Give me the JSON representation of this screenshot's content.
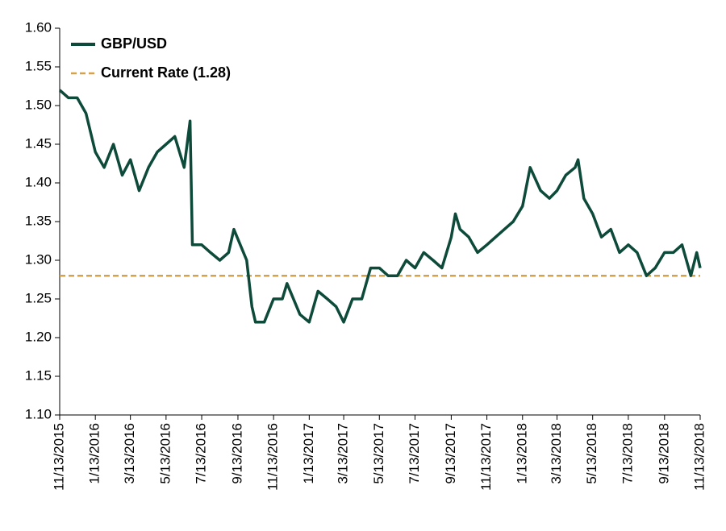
{
  "chart_data": {
    "type": "line",
    "x": [
      "2015-11-13",
      "2015-11-28",
      "2015-12-13",
      "2015-12-28",
      "2016-01-13",
      "2016-01-28",
      "2016-02-13",
      "2016-02-28",
      "2016-03-13",
      "2016-03-28",
      "2016-04-13",
      "2016-04-28",
      "2016-05-13",
      "2016-05-28",
      "2016-06-13",
      "2016-06-23",
      "2016-06-27",
      "2016-07-13",
      "2016-07-28",
      "2016-08-13",
      "2016-08-28",
      "2016-09-06",
      "2016-09-28",
      "2016-10-07",
      "2016-10-13",
      "2016-10-28",
      "2016-11-13",
      "2016-11-28",
      "2016-12-06",
      "2016-12-28",
      "2017-01-13",
      "2017-01-28",
      "2017-02-13",
      "2017-02-28",
      "2017-03-13",
      "2017-03-28",
      "2017-04-13",
      "2017-04-28",
      "2017-05-13",
      "2017-05-28",
      "2017-06-13",
      "2017-06-28",
      "2017-07-13",
      "2017-07-28",
      "2017-08-13",
      "2017-08-28",
      "2017-09-13",
      "2017-09-20",
      "2017-09-28",
      "2017-10-13",
      "2017-10-28",
      "2017-11-13",
      "2017-11-28",
      "2017-12-13",
      "2017-12-28",
      "2018-01-13",
      "2018-01-26",
      "2018-02-13",
      "2018-02-28",
      "2018-03-13",
      "2018-03-28",
      "2018-04-13",
      "2018-04-18",
      "2018-04-28",
      "2018-05-13",
      "2018-05-28",
      "2018-06-13",
      "2018-06-28",
      "2018-07-13",
      "2018-07-28",
      "2018-08-13",
      "2018-08-28",
      "2018-09-13",
      "2018-09-28",
      "2018-10-13",
      "2018-10-28",
      "2018-11-07",
      "2018-11-13"
    ],
    "series": [
      {
        "name": "GBP/USD",
        "color": "#0d4a3a",
        "values": [
          1.52,
          1.51,
          1.51,
          1.49,
          1.44,
          1.42,
          1.45,
          1.41,
          1.43,
          1.39,
          1.42,
          1.44,
          1.45,
          1.46,
          1.42,
          1.48,
          1.32,
          1.32,
          1.31,
          1.3,
          1.31,
          1.34,
          1.3,
          1.24,
          1.22,
          1.22,
          1.25,
          1.25,
          1.27,
          1.23,
          1.22,
          1.26,
          1.25,
          1.24,
          1.22,
          1.25,
          1.25,
          1.29,
          1.29,
          1.28,
          1.28,
          1.3,
          1.29,
          1.31,
          1.3,
          1.29,
          1.33,
          1.36,
          1.34,
          1.33,
          1.31,
          1.32,
          1.33,
          1.34,
          1.35,
          1.37,
          1.42,
          1.39,
          1.38,
          1.39,
          1.41,
          1.42,
          1.43,
          1.38,
          1.36,
          1.33,
          1.34,
          1.31,
          1.32,
          1.31,
          1.28,
          1.29,
          1.31,
          1.31,
          1.32,
          1.28,
          1.31,
          1.29
        ]
      }
    ],
    "reference_line": {
      "name": "Current Rate (1.28)",
      "value": 1.28,
      "color": "#d4a24a"
    },
    "xlim": [
      "2015-11-13",
      "2018-11-13"
    ],
    "xticks": [
      {
        "value": "2015-11-13",
        "label": "11/13/2015"
      },
      {
        "value": "2016-01-13",
        "label": "1/13/2016"
      },
      {
        "value": "2016-03-13",
        "label": "3/13/2016"
      },
      {
        "value": "2016-05-13",
        "label": "5/13/2016"
      },
      {
        "value": "2016-07-13",
        "label": "7/13/2016"
      },
      {
        "value": "2016-09-13",
        "label": "9/13/2016"
      },
      {
        "value": "2016-11-13",
        "label": "11/13/2016"
      },
      {
        "value": "2017-01-13",
        "label": "1/13/2017"
      },
      {
        "value": "2017-03-13",
        "label": "3/13/2017"
      },
      {
        "value": "2017-05-13",
        "label": "5/13/2017"
      },
      {
        "value": "2017-07-13",
        "label": "7/13/2017"
      },
      {
        "value": "2017-09-13",
        "label": "9/13/2017"
      },
      {
        "value": "2017-11-13",
        "label": "11/13/2017"
      },
      {
        "value": "2018-01-13",
        "label": "1/13/2018"
      },
      {
        "value": "2018-03-13",
        "label": "3/13/2018"
      },
      {
        "value": "2018-05-13",
        "label": "5/13/2018"
      },
      {
        "value": "2018-07-13",
        "label": "7/13/2018"
      },
      {
        "value": "2018-09-13",
        "label": "9/13/2018"
      },
      {
        "value": "2018-11-13",
        "label": "11/13/2018"
      }
    ],
    "ylim": [
      1.1,
      1.6
    ],
    "yticks": [
      {
        "value": 1.1,
        "label": "1.10"
      },
      {
        "value": 1.15,
        "label": "1.15"
      },
      {
        "value": 1.2,
        "label": "1.20"
      },
      {
        "value": 1.25,
        "label": "1.25"
      },
      {
        "value": 1.3,
        "label": "1.30"
      },
      {
        "value": 1.35,
        "label": "1.35"
      },
      {
        "value": 1.4,
        "label": "1.40"
      },
      {
        "value": 1.45,
        "label": "1.45"
      },
      {
        "value": 1.5,
        "label": "1.50"
      },
      {
        "value": 1.55,
        "label": "1.55"
      },
      {
        "value": 1.6,
        "label": "1.60"
      }
    ]
  }
}
